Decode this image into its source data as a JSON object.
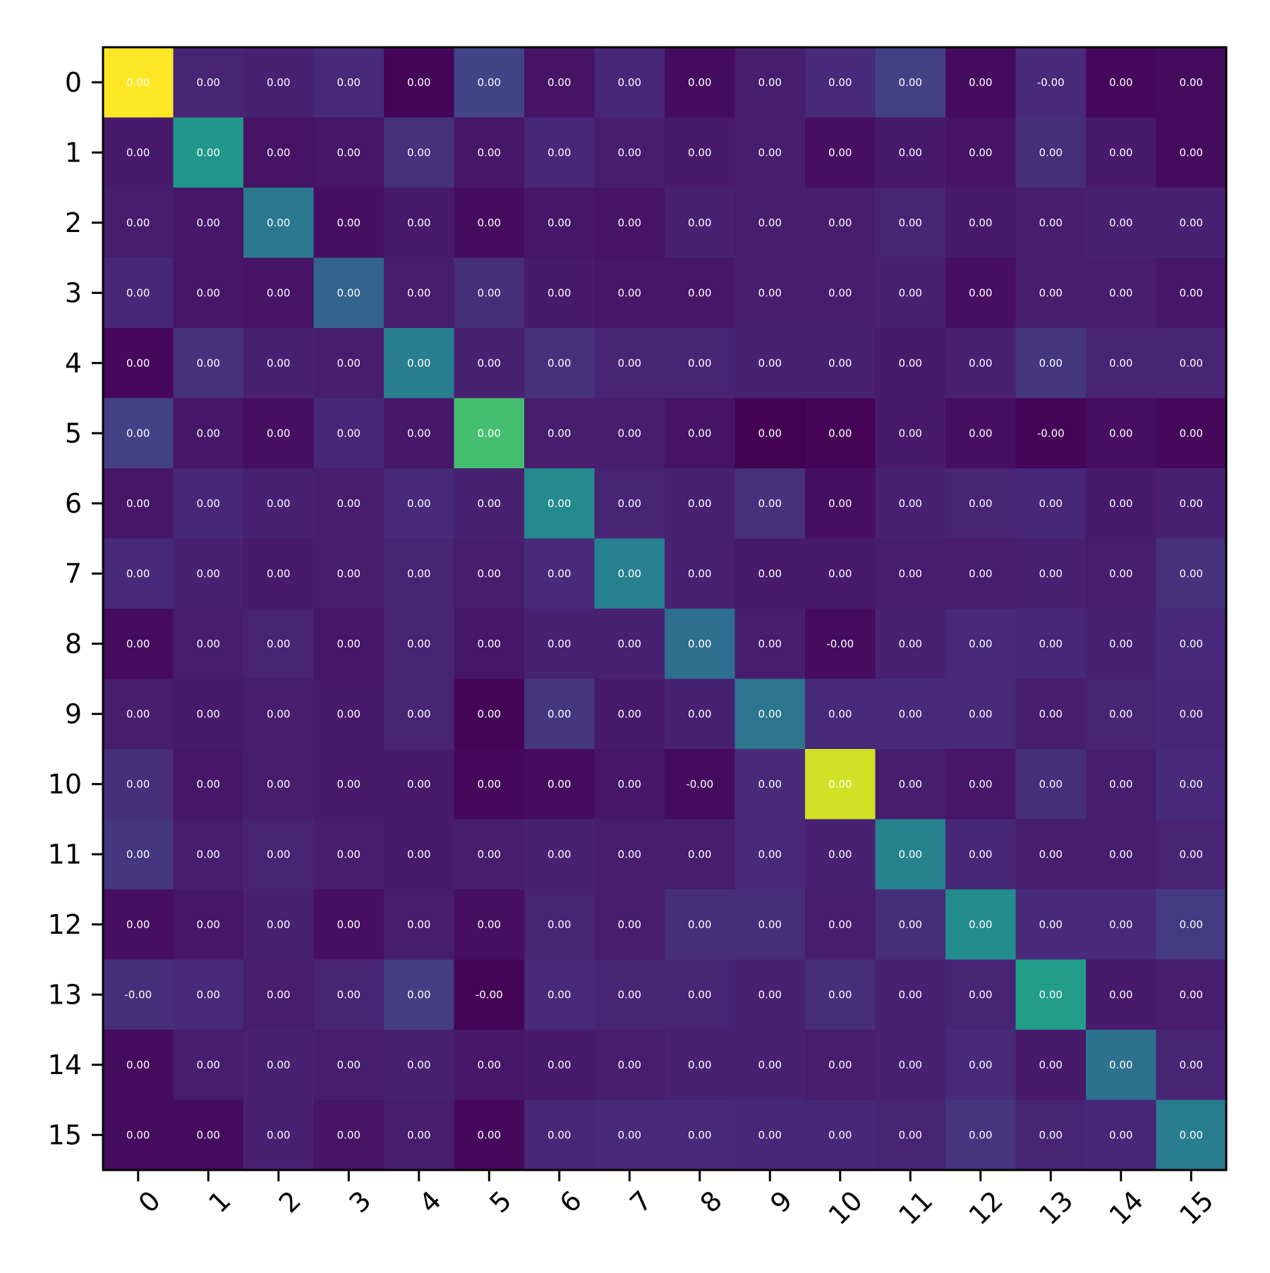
{
  "chart_data": {
    "type": "heatmap",
    "title": "",
    "xlabel": "",
    "ylabel": "",
    "colormap": "viridis",
    "x_tick_labels": [
      "0",
      "1",
      "2",
      "3",
      "4",
      "5",
      "6",
      "7",
      "8",
      "9",
      "10",
      "11",
      "12",
      "13",
      "14",
      "15"
    ],
    "y_tick_labels": [
      "0",
      "1",
      "2",
      "3",
      "4",
      "5",
      "6",
      "7",
      "8",
      "9",
      "10",
      "11",
      "12",
      "13",
      "14",
      "15"
    ],
    "cell_labels": [
      [
        "0.00",
        "0.00",
        "0.00",
        "0.00",
        "0.00",
        "0.00",
        "0.00",
        "0.00",
        "0.00",
        "0.00",
        "0.00",
        "0.00",
        "0.00",
        "-0.00",
        "0.00",
        "0.00"
      ],
      [
        "0.00",
        "0.00",
        "0.00",
        "0.00",
        "0.00",
        "0.00",
        "0.00",
        "0.00",
        "0.00",
        "0.00",
        "0.00",
        "0.00",
        "0.00",
        "0.00",
        "0.00",
        "0.00"
      ],
      [
        "0.00",
        "0.00",
        "0.00",
        "0.00",
        "0.00",
        "0.00",
        "0.00",
        "0.00",
        "0.00",
        "0.00",
        "0.00",
        "0.00",
        "0.00",
        "0.00",
        "0.00",
        "0.00"
      ],
      [
        "0.00",
        "0.00",
        "0.00",
        "0.00",
        "0.00",
        "0.00",
        "0.00",
        "0.00",
        "0.00",
        "0.00",
        "0.00",
        "0.00",
        "0.00",
        "0.00",
        "0.00",
        "0.00"
      ],
      [
        "0.00",
        "0.00",
        "0.00",
        "0.00",
        "0.00",
        "0.00",
        "0.00",
        "0.00",
        "0.00",
        "0.00",
        "0.00",
        "0.00",
        "0.00",
        "0.00",
        "0.00",
        "0.00"
      ],
      [
        "0.00",
        "0.00",
        "0.00",
        "0.00",
        "0.00",
        "0.00",
        "0.00",
        "0.00",
        "0.00",
        "0.00",
        "0.00",
        "0.00",
        "0.00",
        "-0.00",
        "0.00",
        "0.00"
      ],
      [
        "0.00",
        "0.00",
        "0.00",
        "0.00",
        "0.00",
        "0.00",
        "0.00",
        "0.00",
        "0.00",
        "0.00",
        "0.00",
        "0.00",
        "0.00",
        "0.00",
        "0.00",
        "0.00"
      ],
      [
        "0.00",
        "0.00",
        "0.00",
        "0.00",
        "0.00",
        "0.00",
        "0.00",
        "0.00",
        "0.00",
        "0.00",
        "0.00",
        "0.00",
        "0.00",
        "0.00",
        "0.00",
        "0.00"
      ],
      [
        "0.00",
        "0.00",
        "0.00",
        "0.00",
        "0.00",
        "0.00",
        "0.00",
        "0.00",
        "0.00",
        "0.00",
        "-0.00",
        "0.00",
        "0.00",
        "0.00",
        "0.00",
        "0.00"
      ],
      [
        "0.00",
        "0.00",
        "0.00",
        "0.00",
        "0.00",
        "0.00",
        "0.00",
        "0.00",
        "0.00",
        "0.00",
        "0.00",
        "0.00",
        "0.00",
        "0.00",
        "0.00",
        "0.00"
      ],
      [
        "0.00",
        "0.00",
        "0.00",
        "0.00",
        "0.00",
        "0.00",
        "0.00",
        "0.00",
        "-0.00",
        "0.00",
        "0.00",
        "0.00",
        "0.00",
        "0.00",
        "0.00",
        "0.00"
      ],
      [
        "0.00",
        "0.00",
        "0.00",
        "0.00",
        "0.00",
        "0.00",
        "0.00",
        "0.00",
        "0.00",
        "0.00",
        "0.00",
        "0.00",
        "0.00",
        "0.00",
        "0.00",
        "0.00"
      ],
      [
        "0.00",
        "0.00",
        "0.00",
        "0.00",
        "0.00",
        "0.00",
        "0.00",
        "0.00",
        "0.00",
        "0.00",
        "0.00",
        "0.00",
        "0.00",
        "0.00",
        "0.00",
        "0.00"
      ],
      [
        "-0.00",
        "0.00",
        "0.00",
        "0.00",
        "0.00",
        "-0.00",
        "0.00",
        "0.00",
        "0.00",
        "0.00",
        "0.00",
        "0.00",
        "0.00",
        "0.00",
        "0.00",
        "0.00"
      ],
      [
        "0.00",
        "0.00",
        "0.00",
        "0.00",
        "0.00",
        "0.00",
        "0.00",
        "0.00",
        "0.00",
        "0.00",
        "0.00",
        "0.00",
        "0.00",
        "0.00",
        "0.00",
        "0.00"
      ],
      [
        "0.00",
        "0.00",
        "0.00",
        "0.00",
        "0.00",
        "0.00",
        "0.00",
        "0.00",
        "0.00",
        "0.00",
        "0.00",
        "0.00",
        "0.00",
        "0.00",
        "0.00",
        "0.00"
      ]
    ],
    "intensity": [
      [
        1.0,
        0.1,
        0.09,
        0.12,
        0.01,
        0.2,
        0.05,
        0.11,
        0.03,
        0.08,
        0.12,
        0.19,
        0.03,
        0.12,
        0.02,
        0.03
      ],
      [
        0.07,
        0.52,
        0.05,
        0.06,
        0.14,
        0.06,
        0.11,
        0.08,
        0.07,
        0.08,
        0.04,
        0.07,
        0.05,
        0.13,
        0.07,
        0.03
      ],
      [
        0.08,
        0.06,
        0.4,
        0.04,
        0.07,
        0.03,
        0.06,
        0.05,
        0.09,
        0.08,
        0.08,
        0.1,
        0.07,
        0.08,
        0.09,
        0.09
      ],
      [
        0.11,
        0.06,
        0.05,
        0.32,
        0.08,
        0.13,
        0.07,
        0.06,
        0.06,
        0.08,
        0.08,
        0.09,
        0.04,
        0.08,
        0.08,
        0.06
      ],
      [
        0.02,
        0.14,
        0.09,
        0.08,
        0.42,
        0.09,
        0.14,
        0.1,
        0.1,
        0.09,
        0.09,
        0.07,
        0.09,
        0.16,
        0.1,
        0.1
      ],
      [
        0.19,
        0.06,
        0.04,
        0.11,
        0.06,
        0.7,
        0.08,
        0.08,
        0.05,
        0.0,
        0.01,
        0.07,
        0.04,
        0.01,
        0.04,
        0.02
      ],
      [
        0.06,
        0.11,
        0.09,
        0.08,
        0.12,
        0.09,
        0.47,
        0.1,
        0.09,
        0.14,
        0.04,
        0.09,
        0.1,
        0.11,
        0.07,
        0.09
      ],
      [
        0.12,
        0.09,
        0.07,
        0.08,
        0.1,
        0.08,
        0.12,
        0.43,
        0.09,
        0.07,
        0.07,
        0.08,
        0.08,
        0.09,
        0.08,
        0.14
      ],
      [
        0.03,
        0.08,
        0.1,
        0.06,
        0.1,
        0.06,
        0.09,
        0.09,
        0.36,
        0.08,
        0.03,
        0.09,
        0.12,
        0.11,
        0.09,
        0.12
      ],
      [
        0.08,
        0.07,
        0.08,
        0.07,
        0.1,
        0.01,
        0.16,
        0.07,
        0.09,
        0.39,
        0.12,
        0.12,
        0.12,
        0.08,
        0.1,
        0.11
      ],
      [
        0.13,
        0.06,
        0.08,
        0.07,
        0.07,
        0.02,
        0.03,
        0.06,
        0.03,
        0.12,
        0.93,
        0.08,
        0.06,
        0.13,
        0.08,
        0.12
      ],
      [
        0.16,
        0.08,
        0.1,
        0.08,
        0.07,
        0.08,
        0.09,
        0.08,
        0.08,
        0.12,
        0.09,
        0.44,
        0.11,
        0.08,
        0.08,
        0.1
      ],
      [
        0.04,
        0.06,
        0.09,
        0.04,
        0.08,
        0.04,
        0.1,
        0.08,
        0.13,
        0.13,
        0.08,
        0.13,
        0.48,
        0.12,
        0.12,
        0.17
      ],
      [
        0.13,
        0.12,
        0.08,
        0.1,
        0.18,
        0.01,
        0.12,
        0.1,
        0.1,
        0.09,
        0.13,
        0.09,
        0.1,
        0.55,
        0.07,
        0.08
      ],
      [
        0.03,
        0.08,
        0.09,
        0.08,
        0.09,
        0.06,
        0.07,
        0.08,
        0.09,
        0.09,
        0.08,
        0.09,
        0.12,
        0.07,
        0.37,
        0.1
      ],
      [
        0.03,
        0.03,
        0.09,
        0.05,
        0.08,
        0.02,
        0.11,
        0.12,
        0.12,
        0.11,
        0.11,
        0.1,
        0.15,
        0.1,
        0.11,
        0.42
      ]
    ],
    "grid": false
  }
}
